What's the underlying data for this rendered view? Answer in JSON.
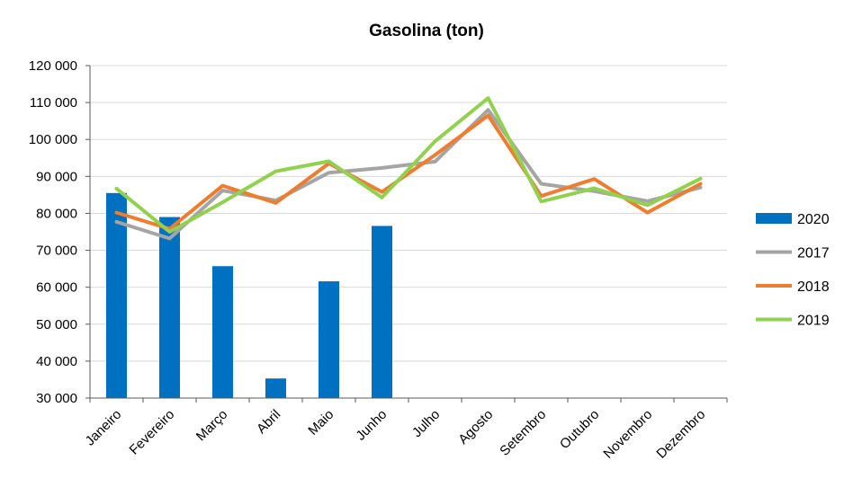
{
  "chart_data": {
    "type": "bar+line",
    "title": "Gasolina (ton)",
    "categories": [
      "Janeiro",
      "Fevereiro",
      "Março",
      "Abril",
      "Maio",
      "Junho",
      "Julho",
      "Agosto",
      "Setembro",
      "Outubro",
      "Novembro",
      "Dezembro"
    ],
    "ylim": [
      30000,
      120000
    ],
    "yticks": [
      30000,
      40000,
      50000,
      60000,
      70000,
      80000,
      90000,
      100000,
      110000,
      120000
    ],
    "ytick_labels": [
      "30 000",
      "40 000",
      "50 000",
      "60 000",
      "70 000",
      "80 000",
      "90 000",
      "100 000",
      "110 000",
      "120 000"
    ],
    "grid": "horizontal",
    "legend": "right",
    "bars": {
      "name": "2020",
      "color": "#0070C0",
      "values": [
        85500,
        79000,
        65700,
        35300,
        61600,
        76600,
        null,
        null,
        null,
        null,
        null,
        null
      ]
    },
    "series": [
      {
        "name": "2017",
        "color": "#A5A5A5",
        "values": [
          77700,
          73200,
          86200,
          83500,
          91000,
          92300,
          94000,
          108000,
          88000,
          86000,
          83300,
          87000
        ]
      },
      {
        "name": "2018",
        "color": "#ED7D31",
        "values": [
          80200,
          75800,
          87500,
          82800,
          93500,
          85800,
          95800,
          106500,
          84700,
          89300,
          80200,
          88000
        ]
      },
      {
        "name": "2019",
        "color": "#92D050",
        "values": [
          86700,
          75000,
          83000,
          91400,
          94100,
          84300,
          99500,
          111200,
          83200,
          86800,
          82200,
          89400
        ]
      }
    ]
  }
}
